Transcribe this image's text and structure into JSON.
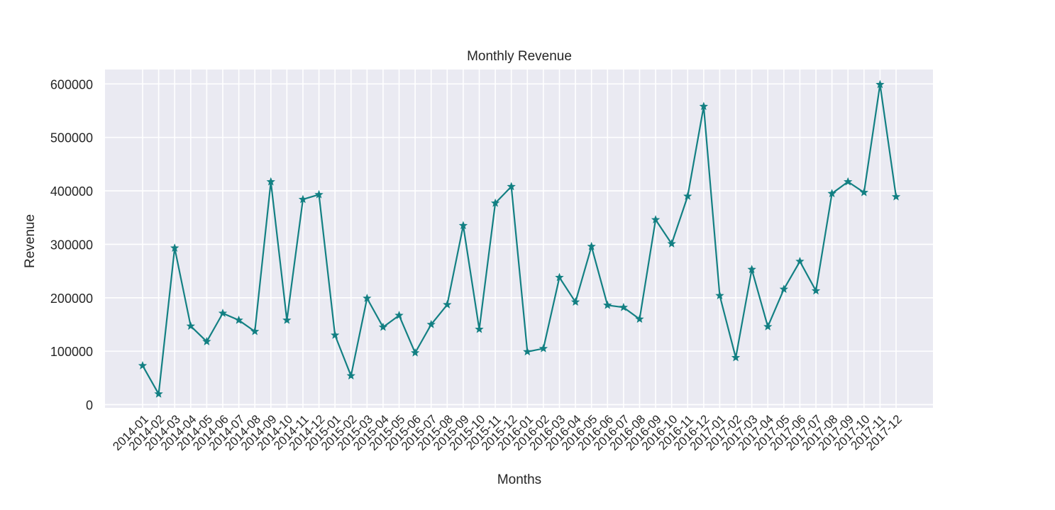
{
  "chart_data": {
    "type": "line",
    "title": "Monthly Revenue",
    "xlabel": "Months",
    "ylabel": "Revenue",
    "ylim": [
      -6000,
      627000
    ],
    "yticks": [
      0,
      100000,
      200000,
      300000,
      400000,
      500000,
      600000
    ],
    "grid": true,
    "marker": "star",
    "line_color": "#138083",
    "background_color": "#eaeaf2",
    "grid_color": "#ffffff",
    "categories": [
      "2014-01",
      "2014-02",
      "2014-03",
      "2014-04",
      "2014-05",
      "2014-06",
      "2014-07",
      "2014-08",
      "2014-09",
      "2014-10",
      "2014-11",
      "2014-12",
      "2015-01",
      "2015-02",
      "2015-03",
      "2015-04",
      "2015-05",
      "2015-06",
      "2015-07",
      "2015-08",
      "2015-09",
      "2015-10",
      "2015-11",
      "2015-12",
      "2016-01",
      "2016-02",
      "2016-03",
      "2016-04",
      "2016-05",
      "2016-06",
      "2016-07",
      "2016-08",
      "2016-09",
      "2016-10",
      "2016-11",
      "2016-12",
      "2017-01",
      "2017-02",
      "2017-03",
      "2017-04",
      "2017-05",
      "2017-06",
      "2017-07",
      "2017-08",
      "2017-09",
      "2017-10",
      "2017-11",
      "2017-12"
    ],
    "values": [
      73000,
      20000,
      293000,
      147000,
      118000,
      171000,
      158000,
      137000,
      417000,
      158000,
      384000,
      393000,
      130000,
      54000,
      199000,
      145000,
      167000,
      97000,
      150000,
      187000,
      335000,
      141000,
      377000,
      408000,
      99000,
      105000,
      238000,
      192000,
      296000,
      186000,
      182000,
      160000,
      346000,
      301000,
      390000,
      558000,
      204000,
      88000,
      253000,
      146000,
      216000,
      268000,
      213000,
      395000,
      417000,
      397000,
      599000,
      389000
    ]
  }
}
